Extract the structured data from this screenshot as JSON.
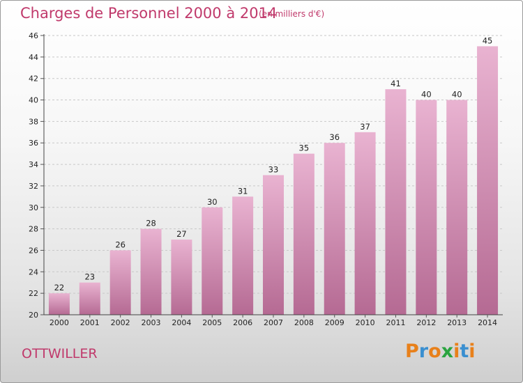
{
  "header": {
    "title": "Charges de Personnel 2000 à 2014",
    "subtitle": "(en milliers d'€)"
  },
  "footer": {
    "location": "OTTWILLER",
    "logo_text": "Proxiti"
  },
  "colors": {
    "accent": "#c0396b",
    "bar_top": "#e9b3d1",
    "bar_bottom": "#b56a93",
    "logo_letters": [
      "#e8801a",
      "#3a8fd0",
      "#e8801a",
      "#2aa43f",
      "#e8801a",
      "#3a8fd0",
      "#e8801a"
    ]
  },
  "chart_data": {
    "type": "bar",
    "title": "Charges de Personnel 2000 à 2014",
    "subtitle": "(en milliers d'€)",
    "xlabel": "",
    "ylabel": "",
    "categories": [
      "2000",
      "2001",
      "2002",
      "2003",
      "2004",
      "2005",
      "2006",
      "2007",
      "2008",
      "2009",
      "2010",
      "2011",
      "2012",
      "2013",
      "2014"
    ],
    "values": [
      22,
      23,
      26,
      28,
      27,
      30,
      31,
      33,
      35,
      36,
      37,
      41,
      40,
      40,
      45
    ],
    "ylim": [
      20,
      46
    ],
    "yticks": [
      20,
      22,
      24,
      26,
      28,
      30,
      32,
      34,
      36,
      38,
      40,
      42,
      44,
      46
    ],
    "grid": true,
    "data_labels": true
  }
}
